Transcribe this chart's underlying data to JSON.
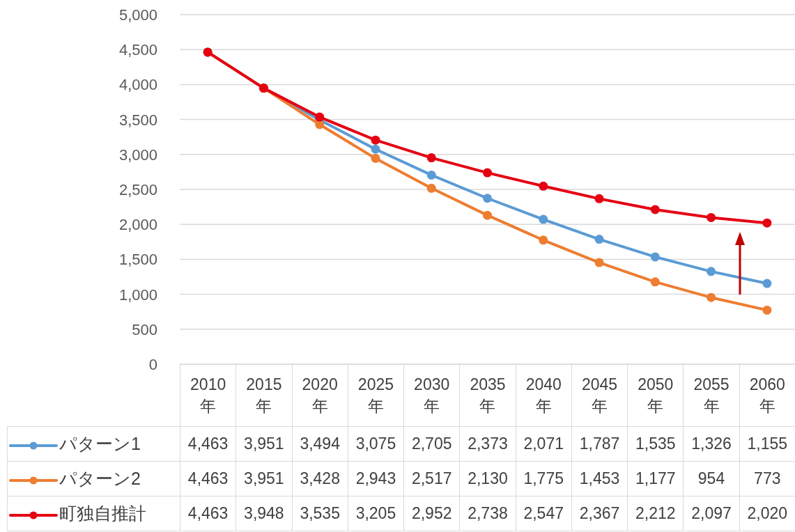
{
  "chart_data": {
    "type": "line",
    "categories": [
      "2010年",
      "2015年",
      "2020年",
      "2025年",
      "2030年",
      "2035年",
      "2040年",
      "2045年",
      "2050年",
      "2055年",
      "2060年"
    ],
    "series": [
      {
        "name": "パターン1",
        "color": "#5b9bd5",
        "values": [
          4463,
          3951,
          3494,
          3075,
          2705,
          2373,
          2071,
          1787,
          1535,
          1326,
          1155
        ],
        "value_labels": [
          "4,463",
          "3,951",
          "3,494",
          "3,075",
          "2,705",
          "2,373",
          "2,071",
          "1,787",
          "1,535",
          "1,326",
          "1,155"
        ]
      },
      {
        "name": "パターン2",
        "color": "#ed7d31",
        "values": [
          4463,
          3951,
          3428,
          2943,
          2517,
          2130,
          1775,
          1453,
          1177,
          954,
          773
        ],
        "value_labels": [
          "4,463",
          "3,951",
          "3,428",
          "2,943",
          "2,517",
          "2,130",
          "1,775",
          "1,453",
          "1,177",
          "954",
          "773"
        ]
      },
      {
        "name": "町独自推計",
        "color": "#e50012",
        "values": [
          4463,
          3948,
          3535,
          3205,
          2952,
          2738,
          2547,
          2367,
          2212,
          2097,
          2020
        ],
        "value_labels": [
          "4,463",
          "3,948",
          "3,535",
          "3,205",
          "2,952",
          "2,738",
          "2,547",
          "2,367",
          "2,212",
          "2,097",
          "2,020"
        ]
      }
    ],
    "ylim": [
      0,
      5000
    ],
    "yticks": [
      0,
      500,
      {
        "value": 1000,
        "label": "1,000"
      },
      {
        "value": 1500,
        "label": "1,500"
      },
      {
        "value": 2000,
        "label": "2,000"
      },
      {
        "value": 2500,
        "label": "2,500"
      },
      {
        "value": 3000,
        "label": "3,000"
      },
      {
        "value": 3500,
        "label": "3,500"
      },
      {
        "value": 4000,
        "label": "4,000"
      },
      {
        "value": 4500,
        "label": "4,500"
      },
      {
        "value": 5000,
        "label": "5,000"
      }
    ],
    "grid": "y",
    "legend": "bottom",
    "marker": "circle",
    "line_style": "solid"
  }
}
